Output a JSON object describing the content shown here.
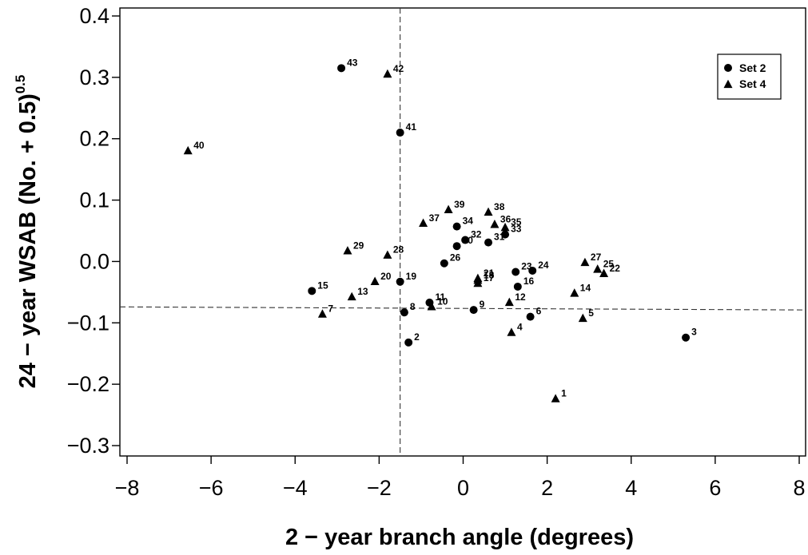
{
  "chart_data": {
    "type": "scatter",
    "title": "",
    "xlabel": "2 − year branch angle (degrees)",
    "ylabel_main": "24 − year WSAB (No. + 0.5)",
    "ylabel_exponent": "0.5",
    "xlim": [
      -8.3,
      8.3
    ],
    "ylim": [
      -0.315,
      0.42
    ],
    "xticks": [
      -8,
      -6,
      -4,
      -2,
      0,
      2,
      4,
      6,
      8
    ],
    "xtick_labels": [
      "−8",
      "−6",
      "−4",
      "−2",
      "0",
      "2",
      "4",
      "6",
      "8"
    ],
    "yticks": [
      -0.3,
      -0.2,
      -0.1,
      0.0,
      0.1,
      0.2,
      0.3,
      0.4
    ],
    "ytick_labels": [
      "−0.3",
      "−0.2",
      "−0.1",
      "0.0",
      "0.1",
      "0.2",
      "0.3",
      "0.4"
    ],
    "grid": false,
    "legend_position": "top-right",
    "reference_lines": {
      "vertical_x": -1.5,
      "horizontal_y_left": -0.074,
      "horizontal_y_right": -0.079
    },
    "series": [
      {
        "name": "Set 2",
        "marker": "circle",
        "points": [
          {
            "label": "2",
            "x": -1.3,
            "y": -0.132
          },
          {
            "label": "3",
            "x": 5.3,
            "y": -0.124
          },
          {
            "label": "6",
            "x": 1.6,
            "y": -0.09
          },
          {
            "label": "8",
            "x": -1.4,
            "y": -0.083
          },
          {
            "label": "9",
            "x": 0.25,
            "y": -0.079
          },
          {
            "label": "11",
            "x": -0.8,
            "y": -0.067
          },
          {
            "label": "15",
            "x": -3.6,
            "y": -0.048
          },
          {
            "label": "16",
            "x": 1.3,
            "y": -0.041
          },
          {
            "label": "19",
            "x": -1.5,
            "y": -0.033
          },
          {
            "label": "23",
            "x": 1.25,
            "y": -0.017
          },
          {
            "label": "24",
            "x": 1.65,
            "y": -0.015
          },
          {
            "label": "26",
            "x": -0.45,
            "y": -0.003
          },
          {
            "label": "30",
            "x": -0.15,
            "y": 0.025
          },
          {
            "label": "31",
            "x": 0.6,
            "y": 0.031
          },
          {
            "label": "32",
            "x": 0.05,
            "y": 0.035
          },
          {
            "label": "33",
            "x": 1.0,
            "y": 0.044
          },
          {
            "label": "34",
            "x": -0.15,
            "y": 0.057
          },
          {
            "label": "41",
            "x": -1.5,
            "y": 0.21
          },
          {
            "label": "43",
            "x": -2.9,
            "y": 0.315
          }
        ]
      },
      {
        "name": "Set 4",
        "marker": "triangle",
        "points": [
          {
            "label": "1",
            "x": 2.2,
            "y": -0.224
          },
          {
            "label": "4",
            "x": 1.15,
            "y": -0.116
          },
          {
            "label": "5",
            "x": 2.85,
            "y": -0.093
          },
          {
            "label": "7",
            "x": -3.35,
            "y": -0.086
          },
          {
            "label": "10",
            "x": -0.75,
            "y": -0.074
          },
          {
            "label": "12",
            "x": 1.1,
            "y": -0.067
          },
          {
            "label": "13",
            "x": -2.65,
            "y": -0.058
          },
          {
            "label": "14",
            "x": 2.65,
            "y": -0.052
          },
          {
            "label": "17",
            "x": 0.35,
            "y": -0.036
          },
          {
            "label": "18",
            "x": 0.35,
            "y": -0.031
          },
          {
            "label": "20",
            "x": -2.1,
            "y": -0.033
          },
          {
            "label": "21",
            "x": 0.35,
            "y": -0.028
          },
          {
            "label": "22",
            "x": 3.35,
            "y": -0.02
          },
          {
            "label": "25",
            "x": 3.2,
            "y": -0.013
          },
          {
            "label": "27",
            "x": 2.9,
            "y": -0.002
          },
          {
            "label": "28",
            "x": -1.8,
            "y": 0.01
          },
          {
            "label": "29",
            "x": -2.75,
            "y": 0.017
          },
          {
            "label": "35",
            "x": 1.0,
            "y": 0.055
          },
          {
            "label": "36",
            "x": 0.75,
            "y": 0.06
          },
          {
            "label": "37",
            "x": -0.95,
            "y": 0.062
          },
          {
            "label": "38",
            "x": 0.6,
            "y": 0.08
          },
          {
            "label": "39",
            "x": -0.35,
            "y": 0.084
          },
          {
            "label": "40",
            "x": -6.55,
            "y": 0.18
          },
          {
            "label": "42",
            "x": -1.8,
            "y": 0.305
          }
        ]
      }
    ]
  }
}
